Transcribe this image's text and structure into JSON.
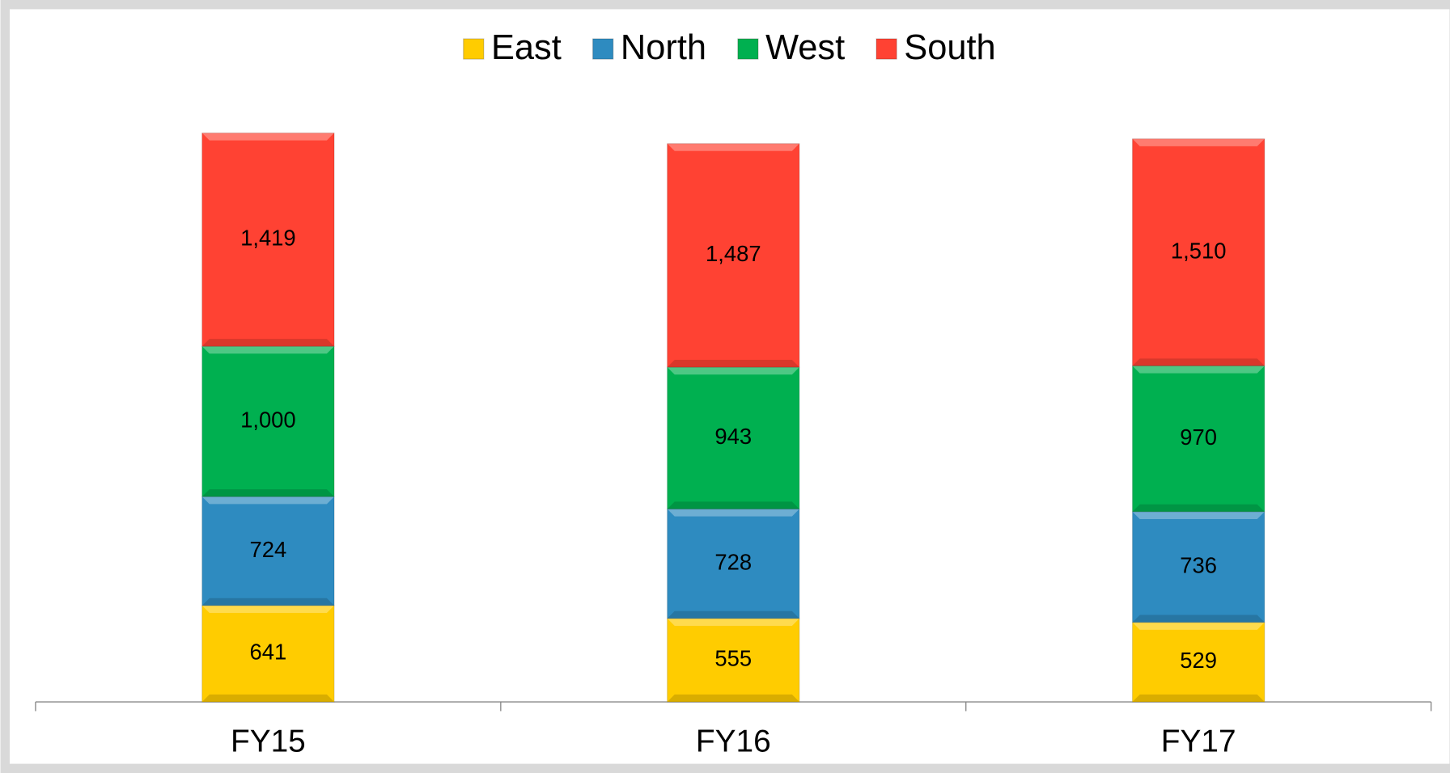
{
  "chart_data": {
    "type": "bar",
    "stacked": true,
    "categories": [
      "FY15",
      "FY16",
      "FY17"
    ],
    "series": [
      {
        "name": "East",
        "color": "#ffcc00",
        "values": [
          641,
          555,
          529
        ]
      },
      {
        "name": "North",
        "color": "#2e8bc0",
        "values": [
          724,
          728,
          736
        ]
      },
      {
        "name": "West",
        "color": "#00b050",
        "values": [
          1000,
          943,
          970
        ],
        "value_labels": [
          "1,000",
          "943",
          "970"
        ]
      },
      {
        "name": "South",
        "color": "#ff4233",
        "values": [
          1419,
          1487,
          1510
        ],
        "value_labels": [
          "1,419",
          "1,487",
          "1,510"
        ]
      }
    ],
    "legend": "top"
  }
}
